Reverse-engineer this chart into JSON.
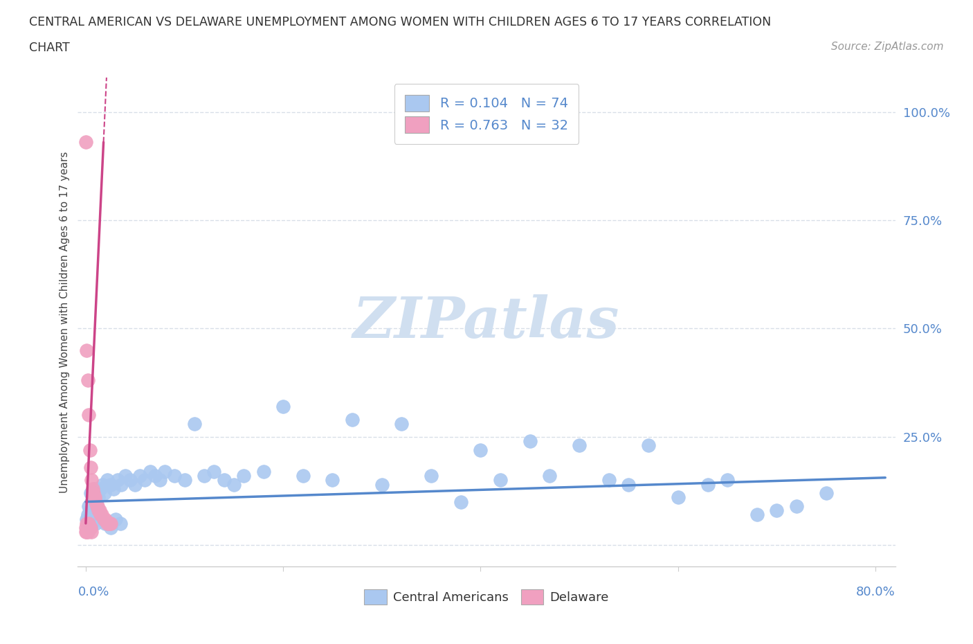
{
  "title_line1": "CENTRAL AMERICAN VS DELAWARE UNEMPLOYMENT AMONG WOMEN WITH CHILDREN AGES 6 TO 17 YEARS CORRELATION",
  "title_line2": "CHART",
  "source_text": "Source: ZipAtlas.com",
  "ylabel": "Unemployment Among Women with Children Ages 6 to 17 years",
  "yticks_labels": [
    "",
    "25.0%",
    "50.0%",
    "75.0%",
    "100.0%"
  ],
  "ytick_vals": [
    0.0,
    0.25,
    0.5,
    0.75,
    1.0
  ],
  "xtick_labels_bottom": [
    "0.0%",
    "80.0%"
  ],
  "xtick_vals_bottom": [
    0.0,
    0.8
  ],
  "xlim": [
    -0.008,
    0.82
  ],
  "ylim": [
    -0.05,
    1.08
  ],
  "blue_color": "#aac8f0",
  "pink_color": "#f0a0c0",
  "blue_line_color": "#5588cc",
  "pink_line_color": "#cc4488",
  "legend_label1": "R = 0.104   N = 74",
  "legend_label2": "R = 0.763   N = 32",
  "watermark": "ZIPatlas",
  "watermark_color": "#d0dff0",
  "grid_color": "#d8dfe8",
  "spine_color": "#cccccc",
  "tick_label_color": "#5588cc",
  "title_color": "#333333",
  "source_color": "#999999",
  "ylabel_color": "#444444",
  "legend_text_color": "#5588cc",
  "blue_x": [
    0.003,
    0.004,
    0.005,
    0.006,
    0.007,
    0.008,
    0.009,
    0.01,
    0.011,
    0.012,
    0.013,
    0.015,
    0.017,
    0.019,
    0.022,
    0.025,
    0.028,
    0.032,
    0.036,
    0.04,
    0.045,
    0.05,
    0.055,
    0.06,
    0.065,
    0.07,
    0.075,
    0.08,
    0.09,
    0.1,
    0.11,
    0.12,
    0.13,
    0.14,
    0.15,
    0.16,
    0.18,
    0.2,
    0.22,
    0.25,
    0.27,
    0.3,
    0.32,
    0.35,
    0.38,
    0.4,
    0.42,
    0.45,
    0.47,
    0.5,
    0.53,
    0.55,
    0.57,
    0.6,
    0.63,
    0.65,
    0.68,
    0.7,
    0.72,
    0.75,
    0.001,
    0.002,
    0.003,
    0.004,
    0.005,
    0.006,
    0.008,
    0.01,
    0.012,
    0.015,
    0.02,
    0.025,
    0.03,
    0.035
  ],
  "blue_y": [
    0.09,
    0.08,
    0.12,
    0.1,
    0.11,
    0.09,
    0.13,
    0.1,
    0.09,
    0.12,
    0.11,
    0.13,
    0.14,
    0.12,
    0.15,
    0.14,
    0.13,
    0.15,
    0.14,
    0.16,
    0.15,
    0.14,
    0.16,
    0.15,
    0.17,
    0.16,
    0.15,
    0.17,
    0.16,
    0.15,
    0.28,
    0.16,
    0.17,
    0.15,
    0.14,
    0.16,
    0.17,
    0.32,
    0.16,
    0.15,
    0.29,
    0.14,
    0.28,
    0.16,
    0.1,
    0.22,
    0.15,
    0.24,
    0.16,
    0.23,
    0.15,
    0.14,
    0.23,
    0.11,
    0.14,
    0.15,
    0.07,
    0.08,
    0.09,
    0.12,
    0.06,
    0.07,
    0.05,
    0.06,
    0.04,
    0.05,
    0.06,
    0.05,
    0.07,
    0.06,
    0.05,
    0.04,
    0.06,
    0.05
  ],
  "pink_x": [
    0.0,
    0.0,
    0.0,
    0.001,
    0.001,
    0.002,
    0.002,
    0.003,
    0.004,
    0.005,
    0.006,
    0.007,
    0.008,
    0.009,
    0.01,
    0.011,
    0.012,
    0.013,
    0.014,
    0.015,
    0.016,
    0.018,
    0.02,
    0.022,
    0.024,
    0.025,
    0.003,
    0.004,
    0.005,
    0.006,
    0.001,
    0.002
  ],
  "pink_y": [
    0.93,
    0.04,
    0.03,
    0.45,
    0.05,
    0.38,
    0.04,
    0.3,
    0.22,
    0.18,
    0.15,
    0.13,
    0.12,
    0.11,
    0.1,
    0.09,
    0.09,
    0.08,
    0.08,
    0.07,
    0.07,
    0.06,
    0.06,
    0.05,
    0.05,
    0.05,
    0.05,
    0.04,
    0.04,
    0.03,
    0.03,
    0.03
  ]
}
